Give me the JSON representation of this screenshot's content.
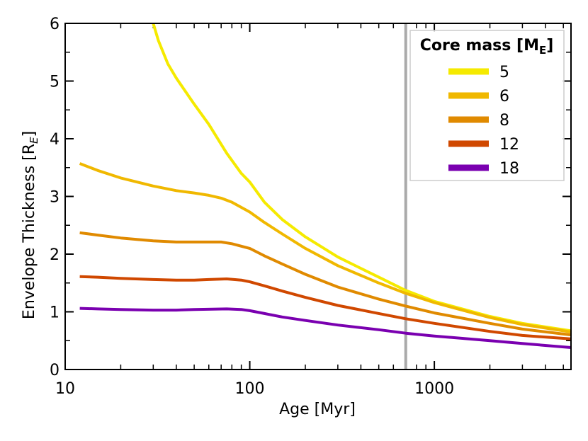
{
  "chart_data": {
    "type": "line",
    "xscale": "log",
    "xlabel": "Age [Myr]",
    "ylabel_main": "Envelope Thickness [R",
    "ylabel_sub": "E",
    "ylabel_end": "]",
    "xlim": [
      10,
      5500
    ],
    "ylim": [
      0,
      6
    ],
    "xticks": [
      10,
      100,
      1000
    ],
    "xtick_labels": [
      "10",
      "100",
      "1000"
    ],
    "yticks": [
      0,
      1,
      2,
      3,
      4,
      5,
      6
    ],
    "ytick_labels": [
      "0",
      "1",
      "2",
      "3",
      "4",
      "5",
      "6"
    ],
    "vline": {
      "x": 700,
      "color": "#aaaaaa"
    },
    "legend": {
      "title_main": "Core mass [M",
      "title_sub": "E",
      "title_end": "]",
      "placement": "top-right"
    },
    "series": [
      {
        "name": "5",
        "color": "#f5ea00",
        "points": [
          [
            30,
            6.0
          ],
          [
            32,
            5.7
          ],
          [
            36,
            5.3
          ],
          [
            40,
            5.05
          ],
          [
            50,
            4.6
          ],
          [
            60,
            4.25
          ],
          [
            75,
            3.75
          ],
          [
            90,
            3.4
          ],
          [
            100,
            3.25
          ],
          [
            120,
            2.9
          ],
          [
            150,
            2.6
          ],
          [
            200,
            2.3
          ],
          [
            300,
            1.95
          ],
          [
            500,
            1.6
          ],
          [
            700,
            1.37
          ],
          [
            1000,
            1.18
          ],
          [
            2000,
            0.92
          ],
          [
            3000,
            0.8
          ],
          [
            5500,
            0.67
          ]
        ]
      },
      {
        "name": "6",
        "color": "#f0b800",
        "points": [
          [
            12,
            3.57
          ],
          [
            15,
            3.45
          ],
          [
            20,
            3.32
          ],
          [
            30,
            3.18
          ],
          [
            40,
            3.1
          ],
          [
            50,
            3.06
          ],
          [
            60,
            3.02
          ],
          [
            70,
            2.97
          ],
          [
            80,
            2.9
          ],
          [
            100,
            2.73
          ],
          [
            120,
            2.55
          ],
          [
            150,
            2.35
          ],
          [
            200,
            2.1
          ],
          [
            300,
            1.8
          ],
          [
            500,
            1.5
          ],
          [
            700,
            1.32
          ],
          [
            1000,
            1.16
          ],
          [
            2000,
            0.9
          ],
          [
            3000,
            0.78
          ],
          [
            5500,
            0.65
          ]
        ]
      },
      {
        "name": "8",
        "color": "#e08a00",
        "points": [
          [
            12,
            2.37
          ],
          [
            15,
            2.33
          ],
          [
            20,
            2.28
          ],
          [
            30,
            2.23
          ],
          [
            40,
            2.21
          ],
          [
            50,
            2.21
          ],
          [
            60,
            2.21
          ],
          [
            70,
            2.21
          ],
          [
            80,
            2.18
          ],
          [
            100,
            2.1
          ],
          [
            120,
            1.97
          ],
          [
            150,
            1.83
          ],
          [
            200,
            1.65
          ],
          [
            300,
            1.43
          ],
          [
            500,
            1.22
          ],
          [
            700,
            1.1
          ],
          [
            1000,
            0.98
          ],
          [
            2000,
            0.8
          ],
          [
            3000,
            0.7
          ],
          [
            5500,
            0.6
          ]
        ]
      },
      {
        "name": "12",
        "color": "#d04800",
        "points": [
          [
            12,
            1.61
          ],
          [
            15,
            1.6
          ],
          [
            20,
            1.58
          ],
          [
            30,
            1.56
          ],
          [
            40,
            1.55
          ],
          [
            50,
            1.55
          ],
          [
            60,
            1.56
          ],
          [
            75,
            1.57
          ],
          [
            90,
            1.55
          ],
          [
            100,
            1.52
          ],
          [
            120,
            1.45
          ],
          [
            150,
            1.36
          ],
          [
            200,
            1.25
          ],
          [
            300,
            1.11
          ],
          [
            500,
            0.97
          ],
          [
            700,
            0.88
          ],
          [
            1000,
            0.8
          ],
          [
            2000,
            0.66
          ],
          [
            3000,
            0.59
          ],
          [
            5500,
            0.53
          ]
        ]
      },
      {
        "name": "18",
        "color": "#7a00b0",
        "points": [
          [
            12,
            1.06
          ],
          [
            15,
            1.05
          ],
          [
            20,
            1.04
          ],
          [
            30,
            1.03
          ],
          [
            40,
            1.03
          ],
          [
            50,
            1.04
          ],
          [
            75,
            1.05
          ],
          [
            90,
            1.04
          ],
          [
            100,
            1.02
          ],
          [
            120,
            0.97
          ],
          [
            150,
            0.91
          ],
          [
            200,
            0.85
          ],
          [
            300,
            0.77
          ],
          [
            500,
            0.69
          ],
          [
            700,
            0.63
          ],
          [
            1000,
            0.58
          ],
          [
            2000,
            0.5
          ],
          [
            3000,
            0.45
          ],
          [
            5500,
            0.38
          ]
        ]
      }
    ]
  }
}
